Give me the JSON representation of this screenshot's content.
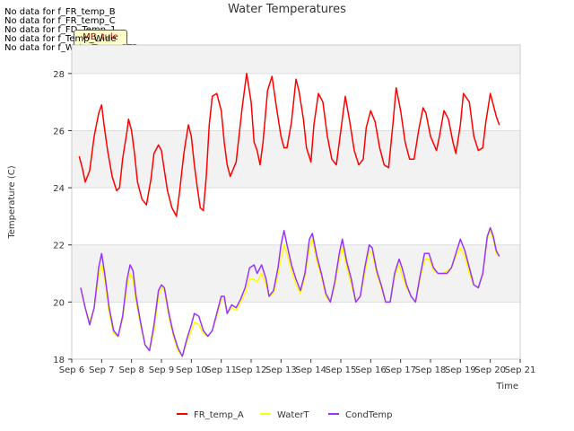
{
  "nodata_messages": [
    "No data for f_FR_temp_B",
    "No data for f_FR_temp_C",
    "No data for f_FD_Temp_1",
    "No data for f_Temp_Wide",
    "No data for f_WaterTemp_CTD"
  ],
  "badge": "MB_tule",
  "chart_data": {
    "type": "line",
    "title": "Water Temperatures",
    "xlabel": "Time",
    "ylabel": "Temperature (C)",
    "xlim": [
      6,
      21
    ],
    "ylim": [
      18,
      29
    ],
    "x_ticks": [
      6,
      7,
      8,
      9,
      10,
      11,
      12,
      13,
      14,
      15,
      16,
      17,
      18,
      19,
      20,
      21
    ],
    "x_tick_labels": [
      "Sep 6",
      "Sep 7",
      "Sep 8",
      "Sep 9",
      "Sep 10",
      "Sep 11",
      "Sep 12",
      "Sep 13",
      "Sep 14",
      "Sep 15",
      "Sep 16",
      "Sep 17",
      "Sep 18",
      "Sep 19",
      "Sep 20",
      "Sep 21"
    ],
    "y_ticks": [
      18,
      20,
      22,
      24,
      26,
      28
    ],
    "y_tick_labels": [
      "18",
      "20",
      "22",
      "24",
      "26",
      "28"
    ],
    "band_color": "#f2f2f2",
    "grid": true,
    "legend_position": "bottom",
    "series": [
      {
        "name": "FR_temp_A",
        "color": "#ff0000",
        "x": [
          6.25,
          6.35,
          6.45,
          6.6,
          6.75,
          6.9,
          7.0,
          7.08,
          7.2,
          7.35,
          7.5,
          7.6,
          7.7,
          7.85,
          7.9,
          8.0,
          8.1,
          8.2,
          8.35,
          8.5,
          8.65,
          8.75,
          8.9,
          9.0,
          9.1,
          9.2,
          9.35,
          9.5,
          9.6,
          9.75,
          9.9,
          10.0,
          10.1,
          10.2,
          10.3,
          10.4,
          10.5,
          10.6,
          10.7,
          10.85,
          11.0,
          11.1,
          11.2,
          11.3,
          11.5,
          11.7,
          11.85,
          12.0,
          12.1,
          12.2,
          12.3,
          12.4,
          12.55,
          12.7,
          12.85,
          13.0,
          13.1,
          13.2,
          13.35,
          13.5,
          13.6,
          13.75,
          13.85,
          14.0,
          14.1,
          14.25,
          14.4,
          14.55,
          14.7,
          14.85,
          15.0,
          15.15,
          15.3,
          15.45,
          15.6,
          15.75,
          15.85,
          16.0,
          16.15,
          16.3,
          16.45,
          16.6,
          16.75,
          16.85,
          17.0,
          17.15,
          17.3,
          17.45,
          17.6,
          17.75,
          17.85,
          18.0,
          18.2,
          18.3,
          18.45,
          18.6,
          18.75,
          18.85,
          19.0,
          19.1,
          19.3,
          19.45,
          19.6,
          19.75,
          19.85,
          20.0,
          20.1,
          20.2,
          20.3
        ],
        "y": [
          25.1,
          24.7,
          24.2,
          24.6,
          25.8,
          26.6,
          26.9,
          26.2,
          25.3,
          24.4,
          23.9,
          24.0,
          25.0,
          26.0,
          26.4,
          26.0,
          25.2,
          24.2,
          23.6,
          23.4,
          24.3,
          25.2,
          25.5,
          25.3,
          24.6,
          23.9,
          23.3,
          23.0,
          23.8,
          25.2,
          26.2,
          25.8,
          24.8,
          24.0,
          23.3,
          23.2,
          24.4,
          26.2,
          27.2,
          27.3,
          26.7,
          25.6,
          24.8,
          24.4,
          24.9,
          26.8,
          28.0,
          27.0,
          25.6,
          25.3,
          24.8,
          25.6,
          27.4,
          27.9,
          26.8,
          25.8,
          25.4,
          25.4,
          26.3,
          27.8,
          27.4,
          26.4,
          25.4,
          24.9,
          26.2,
          27.3,
          27.0,
          25.8,
          25.0,
          24.8,
          26.0,
          27.2,
          26.3,
          25.3,
          24.8,
          25.0,
          26.1,
          26.7,
          26.3,
          25.4,
          24.8,
          24.7,
          26.3,
          27.5,
          26.7,
          25.6,
          25.0,
          25.0,
          26.0,
          26.8,
          26.6,
          25.8,
          25.3,
          25.8,
          26.7,
          26.4,
          25.6,
          25.2,
          26.2,
          27.3,
          27.0,
          25.8,
          25.3,
          25.4,
          26.3,
          27.3,
          26.9,
          26.5,
          26.2
        ]
      },
      {
        "name": "WaterT",
        "color": "#ffff00",
        "x": [
          6.3,
          6.45,
          6.6,
          6.75,
          6.9,
          7.0,
          7.1,
          7.25,
          7.4,
          7.55,
          7.7,
          7.85,
          7.95,
          8.05,
          8.15,
          8.3,
          8.45,
          8.6,
          8.75,
          8.9,
          9.0,
          9.1,
          9.25,
          9.4,
          9.55,
          9.7,
          9.85,
          10.0,
          10.1,
          10.25,
          10.4,
          10.55,
          10.7,
          10.85,
          11.0,
          11.1,
          11.2,
          11.35,
          11.5,
          11.65,
          11.8,
          11.95,
          12.1,
          12.2,
          12.35,
          12.5,
          12.6,
          12.75,
          12.9,
          13.0,
          13.1,
          13.2,
          13.35,
          13.5,
          13.65,
          13.8,
          13.95,
          14.05,
          14.2,
          14.35,
          14.5,
          14.65,
          14.8,
          14.95,
          15.05,
          15.2,
          15.35,
          15.5,
          15.65,
          15.8,
          15.95,
          16.05,
          16.2,
          16.35,
          16.5,
          16.65,
          16.8,
          16.95,
          17.05,
          17.2,
          17.35,
          17.5,
          17.65,
          17.8,
          17.95,
          18.1,
          18.25,
          18.4,
          18.55,
          18.7,
          18.85,
          19.0,
          19.15,
          19.3,
          19.45,
          19.6,
          19.75,
          19.9,
          20.0,
          20.1,
          20.2,
          20.3
        ],
        "y": [
          20.5,
          19.8,
          19.3,
          19.8,
          20.9,
          21.3,
          20.8,
          19.6,
          18.9,
          18.8,
          19.4,
          20.6,
          21.0,
          20.8,
          20.0,
          19.2,
          18.5,
          18.3,
          19.0,
          20.2,
          20.5,
          20.4,
          19.5,
          18.8,
          18.3,
          18.1,
          18.6,
          19.0,
          19.3,
          19.2,
          18.9,
          18.8,
          19.0,
          19.5,
          20.1,
          20.1,
          19.6,
          19.8,
          19.7,
          20.0,
          20.3,
          20.8,
          20.8,
          20.7,
          21.0,
          20.6,
          20.2,
          20.3,
          21.0,
          21.5,
          22.0,
          21.7,
          21.1,
          20.6,
          20.3,
          20.9,
          21.9,
          22.2,
          21.4,
          20.9,
          20.2,
          20.0,
          20.6,
          21.5,
          21.9,
          21.2,
          20.6,
          20.0,
          20.2,
          21.0,
          21.8,
          21.7,
          21.0,
          20.5,
          20.0,
          20.0,
          20.9,
          21.3,
          20.9,
          20.5,
          20.2,
          20.0,
          20.8,
          21.5,
          21.5,
          21.1,
          21.0,
          21.0,
          21.1,
          21.2,
          21.6,
          21.9,
          21.6,
          21.0,
          20.6,
          20.5,
          21.0,
          22.2,
          22.5,
          22.2,
          21.7,
          21.6
        ]
      },
      {
        "name": "CondTemp",
        "color": "#9933ff",
        "x": [
          6.3,
          6.45,
          6.6,
          6.75,
          6.9,
          7.0,
          7.1,
          7.25,
          7.4,
          7.55,
          7.7,
          7.85,
          7.95,
          8.05,
          8.15,
          8.3,
          8.45,
          8.6,
          8.75,
          8.9,
          9.0,
          9.1,
          9.25,
          9.4,
          9.55,
          9.7,
          9.85,
          10.0,
          10.1,
          10.25,
          10.4,
          10.55,
          10.7,
          10.85,
          11.0,
          11.1,
          11.2,
          11.35,
          11.5,
          11.65,
          11.8,
          11.95,
          12.1,
          12.2,
          12.35,
          12.5,
          12.6,
          12.75,
          12.9,
          13.0,
          13.1,
          13.2,
          13.35,
          13.5,
          13.65,
          13.8,
          13.95,
          14.05,
          14.2,
          14.35,
          14.5,
          14.65,
          14.8,
          14.95,
          15.05,
          15.2,
          15.35,
          15.5,
          15.65,
          15.8,
          15.95,
          16.05,
          16.2,
          16.35,
          16.5,
          16.65,
          16.8,
          16.95,
          17.05,
          17.2,
          17.35,
          17.5,
          17.65,
          17.8,
          17.95,
          18.1,
          18.25,
          18.4,
          18.55,
          18.7,
          18.85,
          19.0,
          19.15,
          19.3,
          19.45,
          19.6,
          19.75,
          19.9,
          20.0,
          20.1,
          20.2,
          20.3
        ],
        "y": [
          20.5,
          19.8,
          19.2,
          19.8,
          21.2,
          21.7,
          21.0,
          19.8,
          19.0,
          18.8,
          19.5,
          20.8,
          21.3,
          21.1,
          20.2,
          19.3,
          18.5,
          18.3,
          19.2,
          20.4,
          20.6,
          20.5,
          19.6,
          18.9,
          18.4,
          18.1,
          18.7,
          19.2,
          19.6,
          19.5,
          19.0,
          18.8,
          19.0,
          19.6,
          20.2,
          20.2,
          19.6,
          19.9,
          19.8,
          20.1,
          20.5,
          21.2,
          21.3,
          21.0,
          21.3,
          20.8,
          20.2,
          20.4,
          21.2,
          22.0,
          22.5,
          22.0,
          21.3,
          20.8,
          20.4,
          21.0,
          22.2,
          22.4,
          21.6,
          21.0,
          20.3,
          20.0,
          20.7,
          21.7,
          22.2,
          21.4,
          20.8,
          20.0,
          20.2,
          21.2,
          22.0,
          21.9,
          21.1,
          20.6,
          20.0,
          20.0,
          21.0,
          21.5,
          21.2,
          20.6,
          20.2,
          20.0,
          20.9,
          21.7,
          21.7,
          21.2,
          21.0,
          21.0,
          21.0,
          21.2,
          21.7,
          22.2,
          21.8,
          21.2,
          20.6,
          20.5,
          21.0,
          22.3,
          22.6,
          22.3,
          21.8,
          21.6
        ]
      }
    ]
  }
}
